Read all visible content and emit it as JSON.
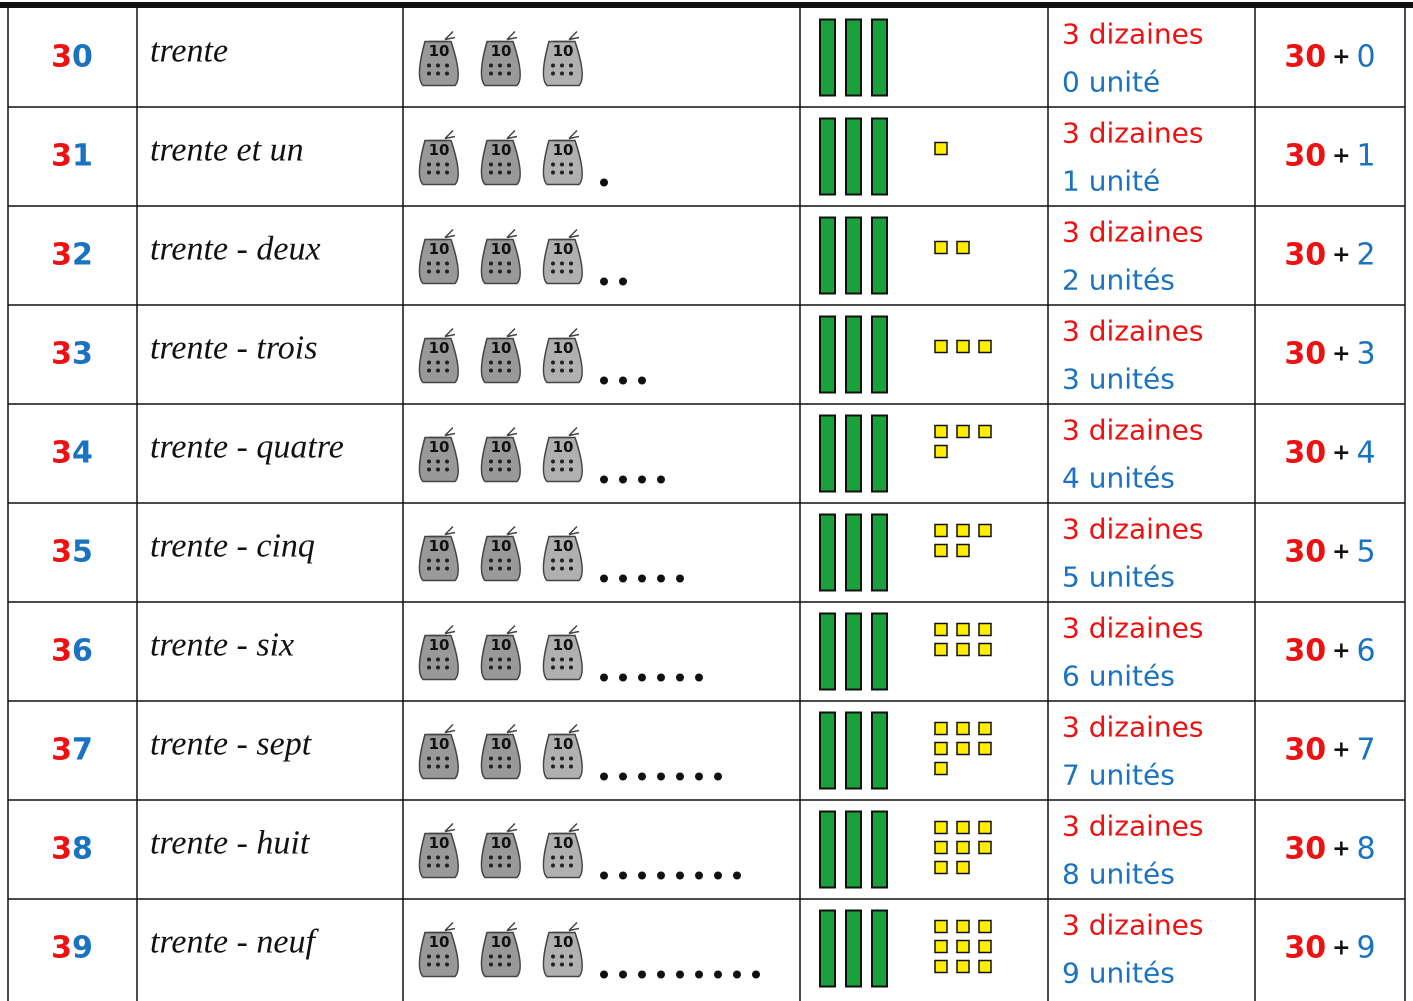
{
  "bag_label": "10",
  "table": {
    "rows": [
      {
        "number": {
          "tens": 3,
          "units": 0
        },
        "words": "trente",
        "dizaines": "3 dizaines",
        "unites": "0 unité",
        "sum": {
          "tens": 30,
          "plus": "+",
          "units": 0
        }
      },
      {
        "number": {
          "tens": 3,
          "units": 1
        },
        "words": "trente et un",
        "dizaines": "3 dizaines",
        "unites": "1 unité",
        "sum": {
          "tens": 30,
          "plus": "+",
          "units": 1
        }
      },
      {
        "number": {
          "tens": 3,
          "units": 2
        },
        "words": "trente - deux",
        "dizaines": "3 dizaines",
        "unites": "2 unités",
        "sum": {
          "tens": 30,
          "plus": "+",
          "units": 2
        }
      },
      {
        "number": {
          "tens": 3,
          "units": 3
        },
        "words": "trente - trois",
        "dizaines": "3 dizaines",
        "unites": "3 unités",
        "sum": {
          "tens": 30,
          "plus": "+",
          "units": 3
        }
      },
      {
        "number": {
          "tens": 3,
          "units": 4
        },
        "words": "trente - quatre",
        "dizaines": "3 dizaines",
        "unites": "4 unités",
        "sum": {
          "tens": 30,
          "plus": "+",
          "units": 4
        }
      },
      {
        "number": {
          "tens": 3,
          "units": 5
        },
        "words": "trente - cinq",
        "dizaines": "3 dizaines",
        "unites": "5 unités",
        "sum": {
          "tens": 30,
          "plus": "+",
          "units": 5
        }
      },
      {
        "number": {
          "tens": 3,
          "units": 6
        },
        "words": "trente - six",
        "dizaines": "3 dizaines",
        "unites": "6 unités",
        "sum": {
          "tens": 30,
          "plus": "+",
          "units": 6
        }
      },
      {
        "number": {
          "tens": 3,
          "units": 7
        },
        "words": "trente - sept",
        "dizaines": "3 dizaines",
        "unites": "7 unités",
        "sum": {
          "tens": 30,
          "plus": "+",
          "units": 7
        }
      },
      {
        "number": {
          "tens": 3,
          "units": 8
        },
        "words": "trente - huit",
        "dizaines": "3 dizaines",
        "unites": "8 unités",
        "sum": {
          "tens": 30,
          "plus": "+",
          "units": 8
        }
      },
      {
        "number": {
          "tens": 3,
          "units": 9
        },
        "words": "trente - neuf",
        "dizaines": "3 dizaines",
        "unites": "9 unités",
        "sum": {
          "tens": 30,
          "plus": "+",
          "units": 9
        }
      }
    ]
  }
}
